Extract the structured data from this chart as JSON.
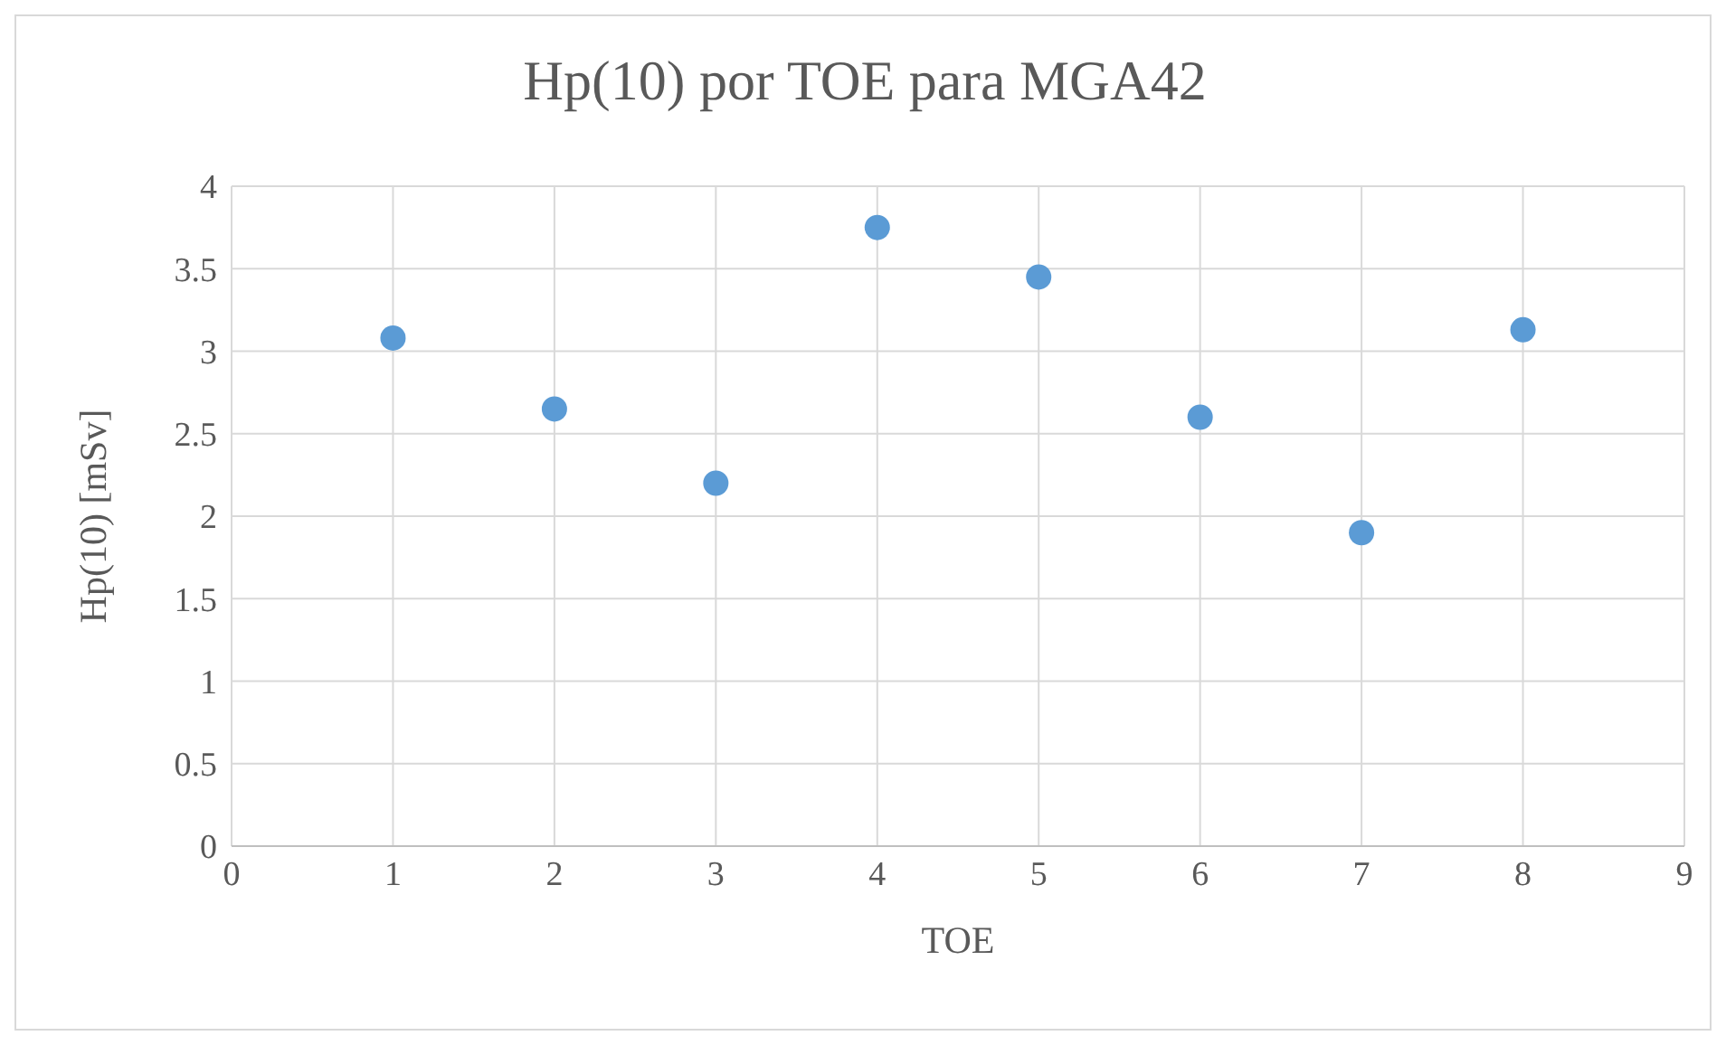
{
  "chart_data": {
    "type": "scatter",
    "title": "Hp(10) por TOE para MGA42",
    "xlabel": "TOE",
    "ylabel": "Hp(10) [mSv]",
    "x": [
      1,
      2,
      3,
      4,
      5,
      6,
      7,
      8
    ],
    "series": [
      {
        "color": "#5b9bd5",
        "values": [
          3.08,
          2.65,
          2.2,
          3.75,
          3.45,
          2.6,
          1.9,
          3.13
        ]
      }
    ],
    "xlim": [
      0,
      9
    ],
    "xticks": [
      0,
      1,
      2,
      3,
      4,
      5,
      6,
      7,
      8,
      9
    ],
    "ylim": [
      0,
      4
    ],
    "yticks": [
      0,
      0.5,
      1,
      1.5,
      2,
      2.5,
      3,
      3.5,
      4
    ],
    "grid": true,
    "legend": false,
    "marker": "circle"
  }
}
